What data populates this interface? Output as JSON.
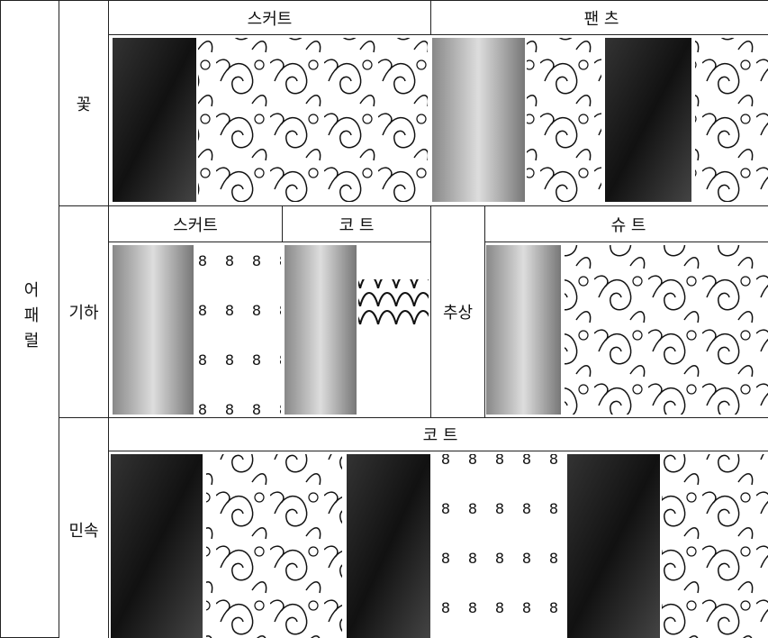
{
  "left_label": "어패럴",
  "rows": [
    {
      "label": "꽃",
      "headers": [
        "스커트",
        "팬 츠"
      ]
    },
    {
      "label": "기하",
      "headers": [
        "스커트",
        "코 트"
      ],
      "sub_label": "추상",
      "sub_headers": [
        "슈 트"
      ]
    },
    {
      "label": "민속",
      "headers": [
        "코 트"
      ]
    }
  ]
}
